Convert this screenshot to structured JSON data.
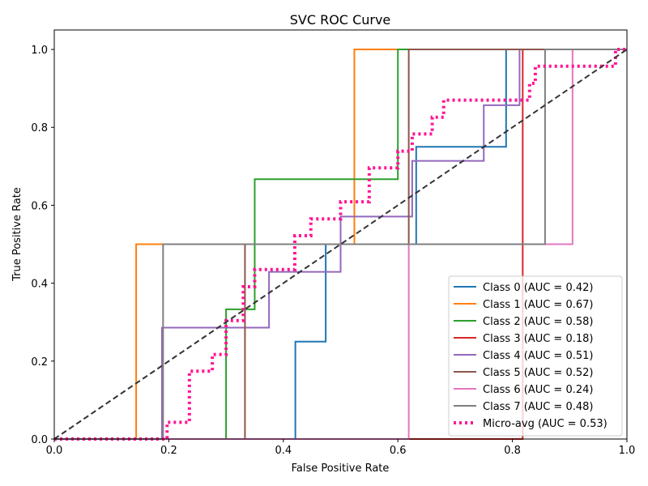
{
  "chart_data": {
    "type": "line",
    "title": "SVC ROC Curve",
    "xlabel": "False Positive Rate",
    "ylabel": "True Positive Rate",
    "xlim": [
      0.0,
      1.0
    ],
    "ylim": [
      0.0,
      1.05
    ],
    "xticks": [
      "0.0",
      "0.2",
      "0.4",
      "0.6",
      "0.8",
      "1.0"
    ],
    "yticks": [
      "0.0",
      "0.2",
      "0.4",
      "0.6",
      "0.8",
      "1.0"
    ],
    "grid": false,
    "legend_position": "lower-right",
    "series": [
      {
        "name": "Class 0 (AUC = 0.42)",
        "color": "#1f77b4",
        "style": "solid",
        "x": [
          0,
          0.421,
          0.421,
          0.474,
          0.474,
          0.632,
          0.632,
          0.789,
          0.789,
          1.0
        ],
        "y": [
          0,
          0,
          0.25,
          0.25,
          0.5,
          0.5,
          0.75,
          0.75,
          1.0,
          1.0
        ]
      },
      {
        "name": "Class 1 (AUC = 0.67)",
        "color": "#ff7f0e",
        "style": "solid",
        "x": [
          0,
          0.143,
          0.143,
          0.524,
          0.524,
          1.0
        ],
        "y": [
          0,
          0,
          0.5,
          0.5,
          1.0,
          1.0
        ]
      },
      {
        "name": "Class 2 (AUC = 0.58)",
        "color": "#2ca02c",
        "style": "solid",
        "x": [
          0,
          0.3,
          0.3,
          0.35,
          0.35,
          0.6,
          0.6,
          1.0
        ],
        "y": [
          0,
          0,
          0.333,
          0.333,
          0.667,
          0.667,
          1.0,
          1.0
        ]
      },
      {
        "name": "Class 3 (AUC = 0.18)",
        "color": "#d62728",
        "style": "solid",
        "x": [
          0,
          0.818,
          0.818,
          1.0
        ],
        "y": [
          0,
          0,
          1.0,
          1.0
        ]
      },
      {
        "name": "Class 4 (AUC = 0.51)",
        "color": "#9467bd",
        "style": "solid",
        "x": [
          0,
          0.188,
          0.188,
          0.375,
          0.375,
          0.5,
          0.5,
          0.625,
          0.625,
          0.75,
          0.75,
          0.8125,
          0.8125,
          1.0
        ],
        "y": [
          0,
          0,
          0.286,
          0.286,
          0.429,
          0.429,
          0.571,
          0.571,
          0.714,
          0.714,
          0.857,
          0.857,
          1.0,
          1.0
        ]
      },
      {
        "name": "Class 5 (AUC = 0.52)",
        "color": "#8c564b",
        "style": "solid",
        "x": [
          0,
          0.333,
          0.333,
          0.619,
          0.619,
          1.0
        ],
        "y": [
          0,
          0,
          0.5,
          0.5,
          1.0,
          1.0
        ]
      },
      {
        "name": "Class 6 (AUC = 0.24)",
        "color": "#e377c2",
        "style": "solid",
        "x": [
          0,
          0.619,
          0.619,
          0.905,
          0.905,
          1.0
        ],
        "y": [
          0,
          0,
          0.5,
          0.5,
          1.0,
          1.0
        ]
      },
      {
        "name": "Class 7 (AUC = 0.48)",
        "color": "#7f7f7f",
        "style": "solid",
        "x": [
          0,
          0.19,
          0.19,
          0.857,
          0.857,
          1.0
        ],
        "y": [
          0,
          0,
          0.5,
          0.5,
          1.0,
          1.0
        ]
      },
      {
        "name": "Micro-avg (AUC = 0.53)",
        "color": "#ff1493",
        "style": "dotted",
        "x": [
          0,
          0.197,
          0.197,
          0.236,
          0.236,
          0.276,
          0.276,
          0.3,
          0.3,
          0.33,
          0.33,
          0.35,
          0.35,
          0.42,
          0.42,
          0.448,
          0.448,
          0.5,
          0.5,
          0.55,
          0.55,
          0.6,
          0.6,
          0.625,
          0.625,
          0.66,
          0.66,
          0.68,
          0.68,
          0.83,
          0.83,
          0.84,
          0.84,
          0.85,
          0.85,
          0.98,
          0.98,
          1.0
        ],
        "y": [
          0,
          0,
          0.043,
          0.043,
          0.174,
          0.174,
          0.217,
          0.217,
          0.304,
          0.304,
          0.391,
          0.391,
          0.435,
          0.435,
          0.522,
          0.522,
          0.565,
          0.565,
          0.609,
          0.609,
          0.696,
          0.696,
          0.739,
          0.739,
          0.783,
          0.783,
          0.826,
          0.826,
          0.87,
          0.87,
          0.913,
          0.913,
          0.957,
          0.957,
          0.957,
          0.957,
          1.0,
          1.0
        ]
      },
      {
        "name": "",
        "color": "#333333",
        "style": "dashed",
        "diagonal": true,
        "x": [
          0,
          1.0
        ],
        "y": [
          0,
          1.0
        ]
      }
    ]
  }
}
